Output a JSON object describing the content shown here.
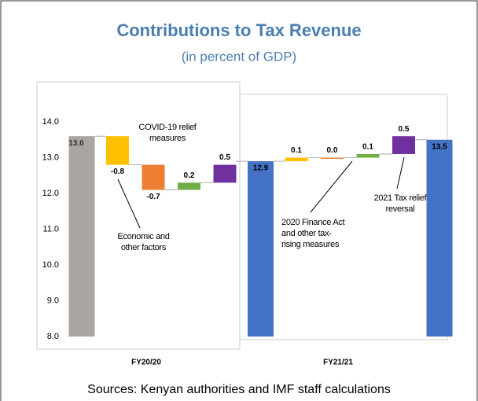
{
  "chart_data": {
    "type": "waterfall",
    "title": "Contributions to Tax Revenue",
    "subtitle": "(in percent of GDP)",
    "source": "Sources: Kenyan authorities and IMF staff calculations",
    "categories": [
      null,
      null,
      null,
      null,
      null,
      null,
      null,
      null,
      null,
      null,
      null
    ],
    "values": [
      13.6,
      -0.8,
      -0.7,
      0.2,
      0.5,
      12.9,
      0.1,
      0.0,
      0.1,
      0.5,
      13.5
    ],
    "value_labels": [
      "13.6",
      "-0.8",
      "-0.7",
      "0.2",
      "0.5",
      "12.9",
      "0.1",
      "0.0",
      "0.1",
      "0.5",
      "13.5"
    ],
    "is_total": [
      true,
      false,
      false,
      false,
      false,
      true,
      false,
      false,
      false,
      false,
      true
    ],
    "colors": [
      "#a9a5a2",
      "#ffc000",
      "#ed7d31",
      "#70ad47",
      "#7030a0",
      "#4472c4",
      "#ffc000",
      "#ed7d31",
      "#70ad47",
      "#7030a0",
      "#4472c4"
    ],
    "groups": [
      "FY20/20",
      "FY21/21"
    ],
    "annotations": [
      "COVID-19 relief measures",
      "Economic and other factors",
      "2020 Finance Act and other tax-rising measures",
      "2021 Tax relief reversal"
    ],
    "ylim": [
      8,
      14
    ],
    "yticks": [
      {
        "value": 8,
        "label": "8.0"
      },
      {
        "value": 9,
        "label": "9.0"
      },
      {
        "value": 10,
        "label": "10.0"
      },
      {
        "value": 11,
        "label": "11.0"
      },
      {
        "value": 12,
        "label": "12.0"
      },
      {
        "value": 13,
        "label": "13.0"
      },
      {
        "value": 14,
        "label": "14.0"
      }
    ],
    "grid": false
  }
}
